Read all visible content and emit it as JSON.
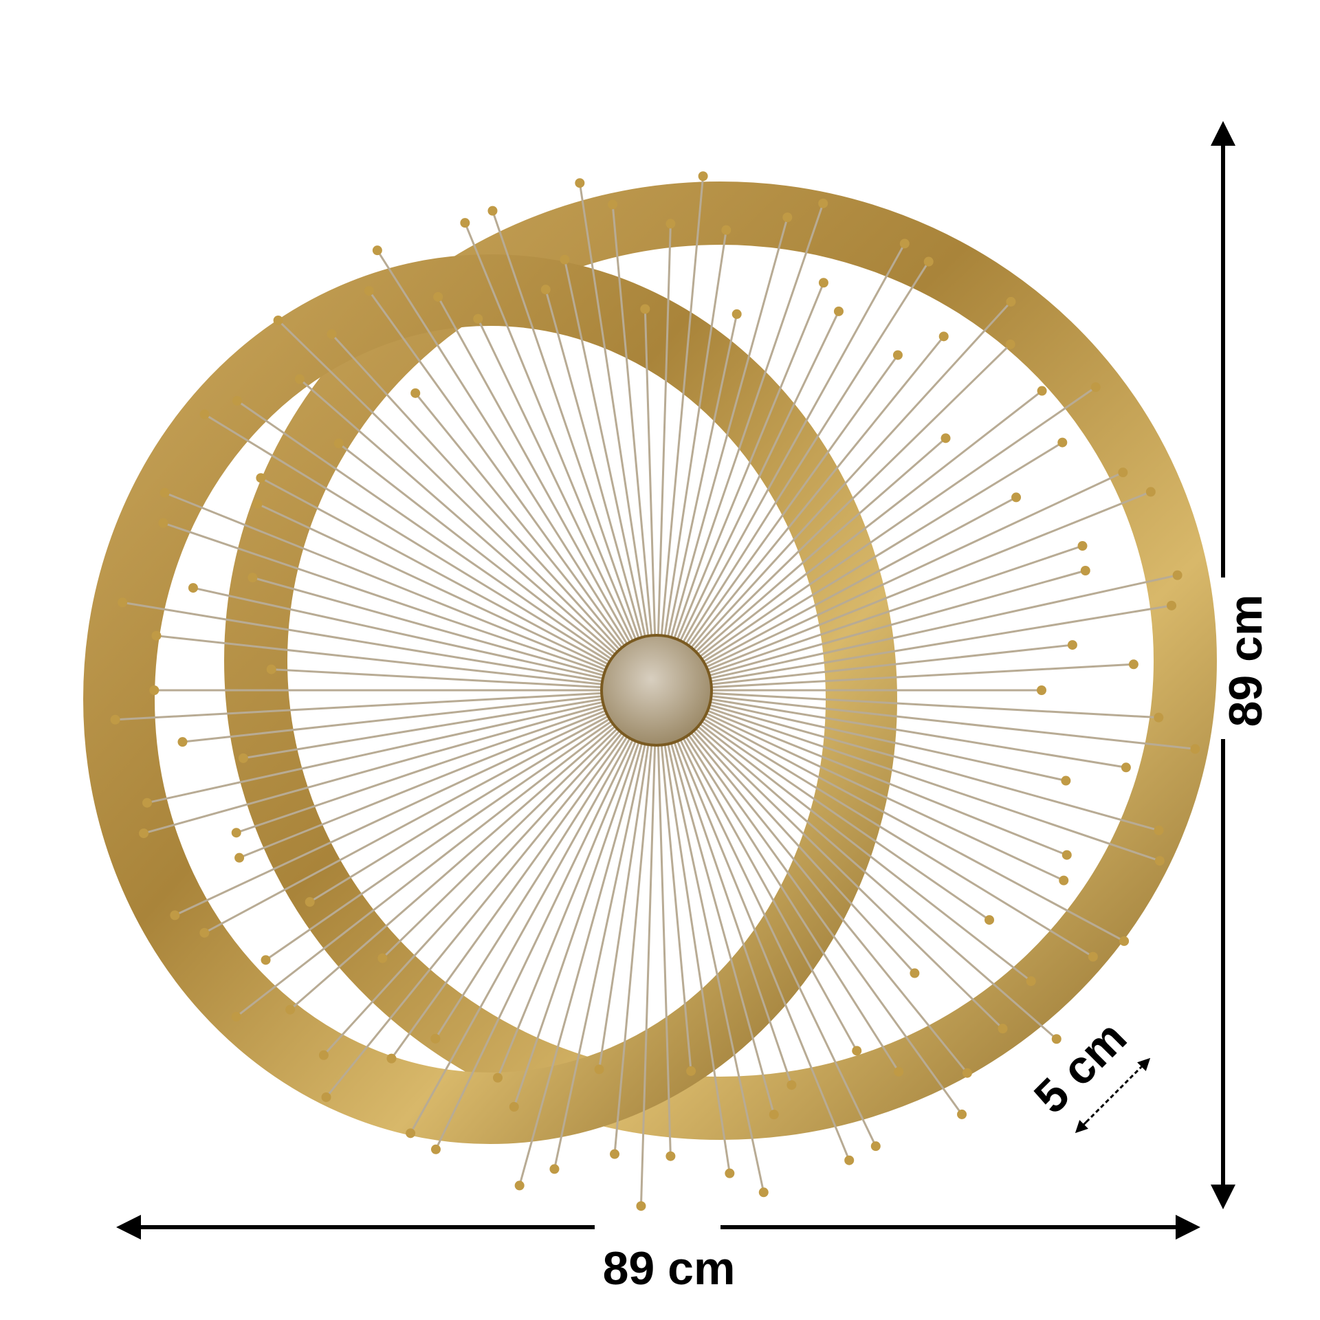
{
  "dimensions": {
    "width": "89 cm",
    "height": "89 cm",
    "depth": "5 cm"
  }
}
